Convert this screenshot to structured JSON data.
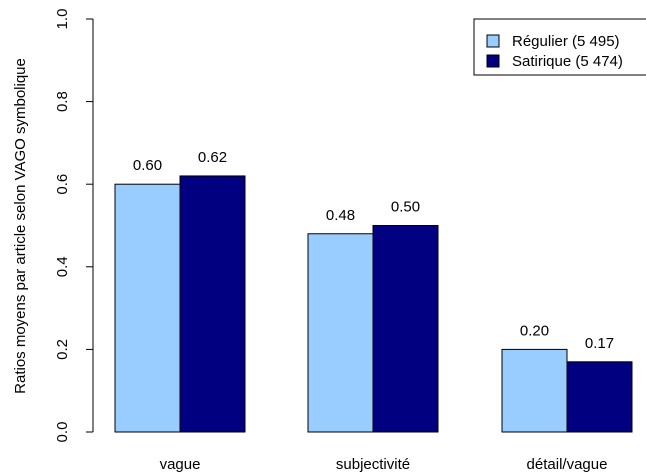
{
  "chart_data": {
    "type": "bar",
    "categories": [
      "vague",
      "subjectivité",
      "détail/vague"
    ],
    "series": [
      {
        "name": "Régulier (5 495)",
        "color": "#99ccff",
        "values": [
          0.6,
          0.48,
          0.2
        ],
        "labels": [
          "0.60",
          "0.48",
          "0.20"
        ]
      },
      {
        "name": "Satirique (5 474)",
        "color": "#000080",
        "values": [
          0.62,
          0.5,
          0.17
        ],
        "labels": [
          "0.62",
          "0.50",
          "0.17"
        ]
      }
    ],
    "title": "",
    "xlabel": "",
    "ylabel": "Ratios moyens par article selon VAGO symbolique",
    "ylim": [
      0,
      1.0
    ],
    "yticks": [
      0.0,
      0.2,
      0.4,
      0.6,
      0.8,
      1.0
    ],
    "ytick_labels": [
      "0.0",
      "0.2",
      "0.4",
      "0.6",
      "0.8",
      "1.0"
    ],
    "legend_position": "top-right",
    "grid": false
  }
}
